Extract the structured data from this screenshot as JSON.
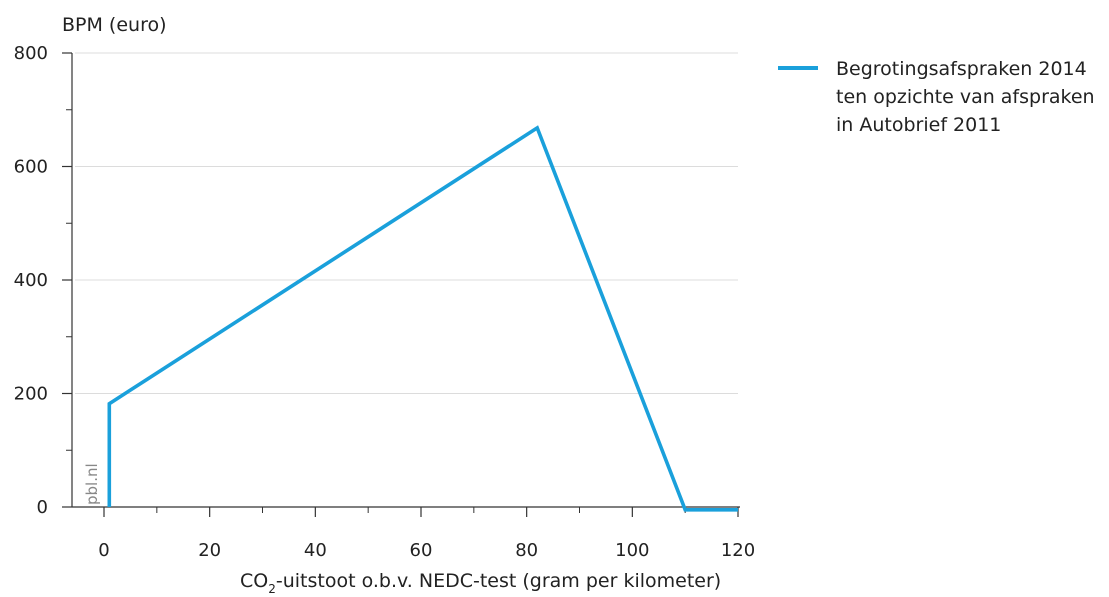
{
  "chart_data": {
    "type": "line",
    "ylabel": "BPM (euro)",
    "xlabel": {
      "prefix": "CO",
      "subscript": "2",
      "suffix": "-uitstoot o.b.v. NEDC-test (gram per kilometer)"
    },
    "xlim": [
      -6,
      120
    ],
    "ylim": [
      -5,
      800
    ],
    "xticks": [
      "0",
      "20",
      "40",
      "60",
      "80",
      "100",
      "120"
    ],
    "yticks": [
      "0",
      "200",
      "400",
      "600",
      "800"
    ],
    "grid": true,
    "legend_position": "top-right",
    "series": [
      {
        "name": "Begrotingsafspraken 2014 ten opzichte van afspraken in Autobrief 2011",
        "name_lines": [
          "Begrotingsafspraken 2014",
          "ten opzichte van afspraken",
          "in Autobrief 2011"
        ],
        "color": "#1aa0db",
        "x": [
          1,
          1,
          82,
          110,
          120
        ],
        "y": [
          0,
          182,
          668,
          -5,
          -5
        ]
      }
    ],
    "watermark": "pbl.nl"
  }
}
